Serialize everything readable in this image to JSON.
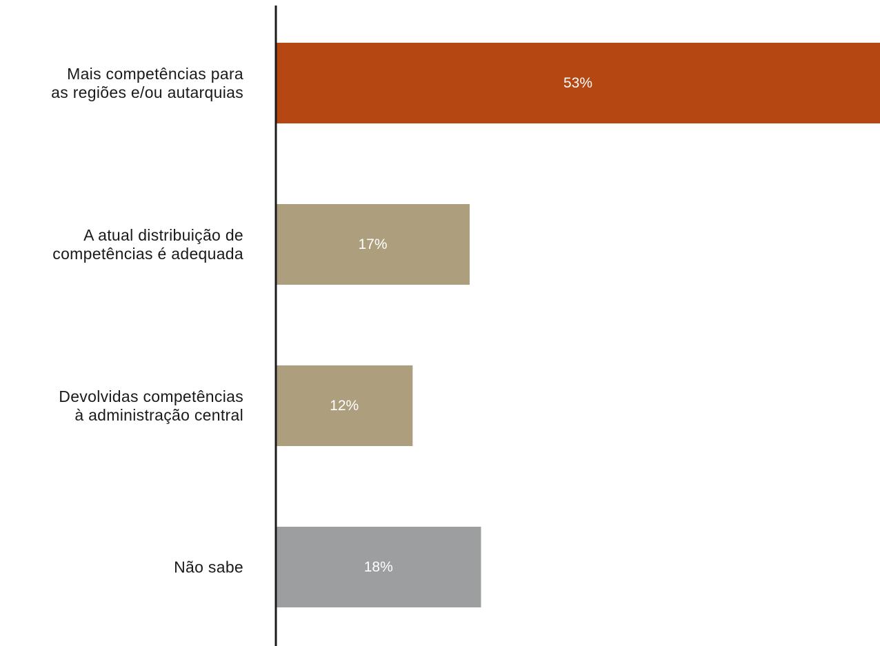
{
  "chart_data": {
    "type": "bar",
    "orientation": "horizontal",
    "title": "",
    "xlabel": "",
    "ylabel": "",
    "grid": false,
    "legend": "none",
    "xlim": [
      0,
      53
    ],
    "categories": [
      [
        "Mais competências para",
        "as regiões e/ou autarquias"
      ],
      [
        "A atual distribuição de",
        "competências é adequada"
      ],
      [
        "Devolvidas competências",
        "à administração central"
      ],
      [
        "Não sabe"
      ]
    ],
    "values": [
      53,
      17,
      12,
      18
    ],
    "value_labels": [
      "53%",
      "17%",
      "12%",
      "18%"
    ],
    "colors": [
      "#b54712",
      "#ad9f7d",
      "#ad9f7d",
      "#9d9e9f"
    ],
    "axis_color": "#1a1a1a"
  }
}
